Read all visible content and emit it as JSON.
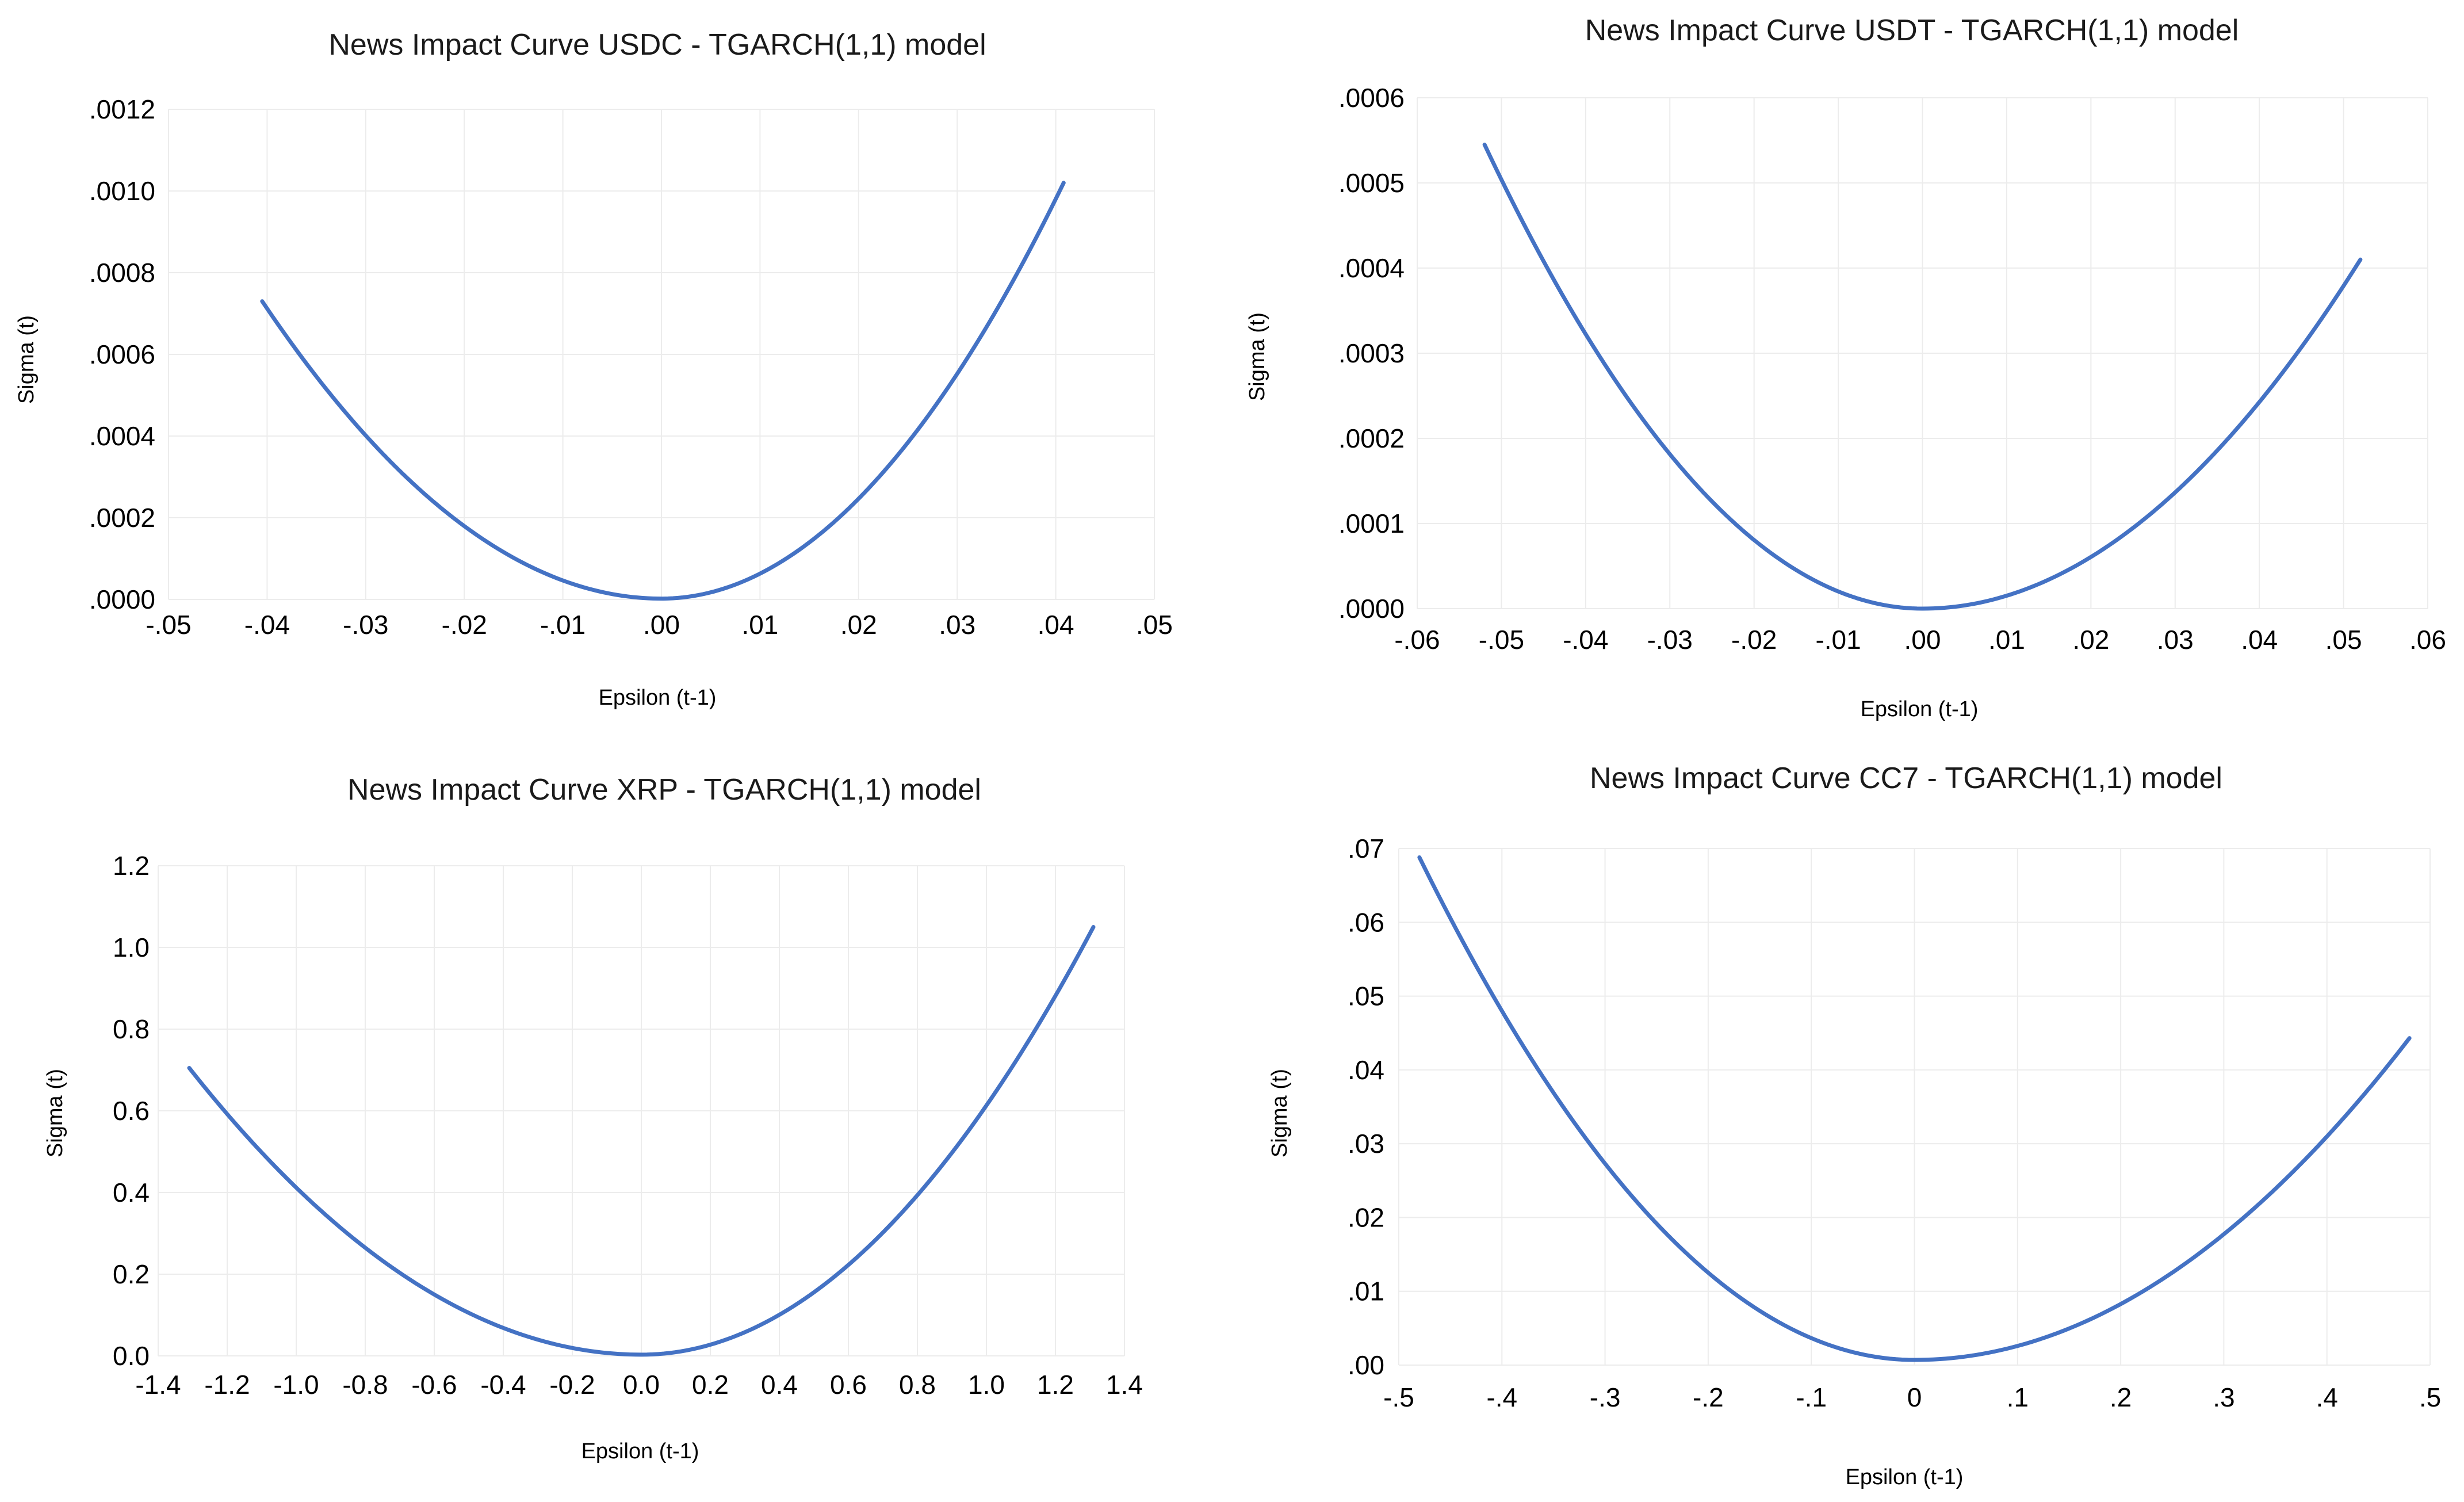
{
  "colors": {
    "series": "#4472c4",
    "grid": "#ececec",
    "text": "#000000",
    "background": "#ffffff"
  },
  "chart_data": [
    {
      "id": "usdc",
      "type": "line",
      "title": "News Impact Curve USDC - TGARCH(1,1) model",
      "xlabel": "Epsilon (t-1)",
      "ylabel": "Sigma (t)",
      "xlim": [
        -0.05,
        0.05
      ],
      "ylim": [
        0,
        0.0012
      ],
      "xticks": [
        -0.05,
        -0.04,
        -0.03,
        -0.02,
        -0.01,
        0,
        0.01,
        0.02,
        0.03,
        0.04,
        0.05
      ],
      "xtick_labels": [
        "-.05",
        "-.04",
        "-.03",
        "-.02",
        "-.01",
        ".00",
        ".01",
        ".02",
        ".03",
        ".04",
        ".05"
      ],
      "yticks": [
        0,
        0.0002,
        0.0004,
        0.0006,
        0.0008,
        0.001,
        0.0012
      ],
      "ytick_labels": [
        ".0000",
        ".0002",
        ".0004",
        ".0006",
        ".0008",
        ".0010",
        ".0012"
      ],
      "grid": true,
      "legend": "none",
      "series": [
        {
          "name": "Sigma (t)",
          "x_min": -0.0405,
          "x_max": 0.0408,
          "y_at_min": 0.00073,
          "y_at_max": 0.00102,
          "y_center": 2e-06
        }
      ]
    },
    {
      "id": "usdt",
      "type": "line",
      "title": "News Impact Curve USDT - TGARCH(1,1) model",
      "xlabel": "Epsilon (t-1)",
      "ylabel": "Sigma (t)",
      "xlim": [
        -0.06,
        0.06
      ],
      "ylim": [
        0,
        0.0006
      ],
      "xticks": [
        -0.06,
        -0.05,
        -0.04,
        -0.03,
        -0.02,
        -0.01,
        0,
        0.01,
        0.02,
        0.03,
        0.04,
        0.05,
        0.06
      ],
      "xtick_labels": [
        "-.06",
        "-.05",
        "-.04",
        "-.03",
        "-.02",
        "-.01",
        ".00",
        ".01",
        ".02",
        ".03",
        ".04",
        ".05",
        ".06"
      ],
      "yticks": [
        0,
        0.0001,
        0.0002,
        0.0003,
        0.0004,
        0.0005,
        0.0006
      ],
      "ytick_labels": [
        ".0000",
        ".0001",
        ".0002",
        ".0003",
        ".0004",
        ".0005",
        ".0006"
      ],
      "grid": true,
      "legend": "none",
      "series": [
        {
          "name": "Sigma (t)",
          "x_min": -0.052,
          "x_max": 0.052,
          "y_at_min": 0.000545,
          "y_at_max": 0.00041,
          "y_center": 0.0
        }
      ]
    },
    {
      "id": "xrp",
      "type": "line",
      "title": "News Impact Curve XRP - TGARCH(1,1) model",
      "xlabel": "Epsilon (t-1)",
      "ylabel": "Sigma (t)",
      "xlim": [
        -1.4,
        1.4
      ],
      "ylim": [
        0,
        1.2
      ],
      "xticks": [
        -1.4,
        -1.2,
        -1.0,
        -0.8,
        -0.6,
        -0.4,
        -0.2,
        0,
        0.2,
        0.4,
        0.6,
        0.8,
        1.0,
        1.2,
        1.4
      ],
      "xtick_labels": [
        "-1.4",
        "-1.2",
        "-1.0",
        "-0.8",
        "-0.6",
        "-0.4",
        "-0.2",
        "0.0",
        "0.2",
        "0.4",
        "0.6",
        "0.8",
        "1.0",
        "1.2",
        "1.4"
      ],
      "yticks": [
        0,
        0.2,
        0.4,
        0.6,
        0.8,
        1.0,
        1.2
      ],
      "ytick_labels": [
        "0.0",
        "0.2",
        "0.4",
        "0.6",
        "0.8",
        "1.0",
        "1.2"
      ],
      "grid": true,
      "legend": "none",
      "series": [
        {
          "name": "Sigma (t)",
          "x_min": -1.31,
          "x_max": 1.31,
          "y_at_min": 0.705,
          "y_at_max": 1.05,
          "y_center": 0.003
        }
      ]
    },
    {
      "id": "cc7",
      "type": "line",
      "title": "News Impact Curve CC7 - TGARCH(1,1) model",
      "xlabel": "Epsilon (t-1)",
      "ylabel": "Sigma (t)",
      "xlim": [
        -0.5,
        0.5
      ],
      "ylim": [
        0,
        0.07
      ],
      "xticks": [
        -0.5,
        -0.4,
        -0.3,
        -0.2,
        -0.1,
        0,
        0.1,
        0.2,
        0.3,
        0.4,
        0.5
      ],
      "xtick_labels": [
        "-.5",
        "-.4",
        "-.3",
        "-.2",
        "-.1",
        "0",
        ".1",
        ".2",
        ".3",
        ".4",
        ".5"
      ],
      "yticks": [
        0,
        0.01,
        0.02,
        0.03,
        0.04,
        0.05,
        0.06,
        0.07
      ],
      "ytick_labels": [
        ".00",
        ".01",
        ".02",
        ".03",
        ".04",
        ".05",
        ".06",
        ".07"
      ],
      "grid": true,
      "legend": "none",
      "series": [
        {
          "name": "Sigma (t)",
          "x_min": -0.48,
          "x_max": 0.48,
          "y_at_min": 0.0688,
          "y_at_max": 0.0443,
          "y_center": 0.0007
        }
      ]
    }
  ]
}
